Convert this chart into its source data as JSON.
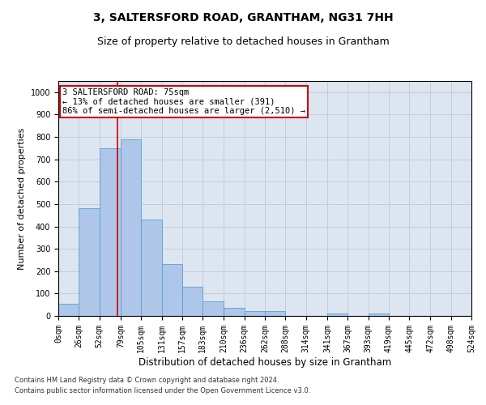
{
  "title": "3, SALTERSFORD ROAD, GRANTHAM, NG31 7HH",
  "subtitle": "Size of property relative to detached houses in Grantham",
  "xlabel": "Distribution of detached houses by size in Grantham",
  "ylabel": "Number of detached properties",
  "footer_line1": "Contains HM Land Registry data © Crown copyright and database right 2024.",
  "footer_line2": "Contains public sector information licensed under the Open Government Licence v3.0.",
  "bar_edges": [
    0,
    26,
    52,
    79,
    105,
    131,
    157,
    183,
    210,
    236,
    262,
    288,
    314,
    341,
    367,
    393,
    419,
    445,
    472,
    498,
    524
  ],
  "bar_heights": [
    55,
    480,
    750,
    790,
    430,
    230,
    130,
    65,
    35,
    20,
    20,
    0,
    0,
    10,
    0,
    10,
    0,
    0,
    0,
    0
  ],
  "bar_color": "#aec6e8",
  "bar_edge_color": "#5a9fd4",
  "grid_color": "#c0c8d8",
  "background_color": "#dde6f0",
  "red_line_x": 75,
  "annotation_text": "3 SALTERSFORD ROAD: 75sqm\n← 13% of detached houses are smaller (391)\n86% of semi-detached houses are larger (2,510) →",
  "annotation_box_color": "#cc0000",
  "ylim": [
    0,
    1050
  ],
  "yticks": [
    0,
    100,
    200,
    300,
    400,
    500,
    600,
    700,
    800,
    900,
    1000
  ],
  "tick_label_fontsize": 7,
  "title_fontsize": 10,
  "subtitle_fontsize": 9,
  "xlabel_fontsize": 8.5,
  "ylabel_fontsize": 8,
  "annotation_fontsize": 7.5
}
